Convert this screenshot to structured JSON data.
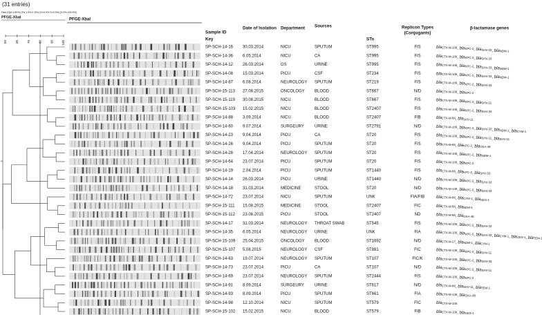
{
  "caption": "(31 entries)",
  "dendrogram": {
    "method": "Dice (Opt:1.50%) (Tol 1.5%-1.5%) (H>0.0% S>0.0%) [0.0%-100.0%]",
    "title": "PFGE-XbaI",
    "scale_ticks": [
      50,
      60,
      70,
      80,
      90,
      100
    ]
  },
  "gel": {
    "title": "PFGE-XbaI"
  },
  "table": {
    "headers": {
      "sample_id": "Sample ID",
      "key": "Key",
      "date": "Date of Isolation",
      "department": "Department",
      "sources": "Sources",
      "sts": "STs",
      "replicon": [
        "Replicon Types",
        "(Conjugants)"
      ],
      "genes": "β-lactamase genes"
    },
    "gene_prefix": "bla",
    "gene_separator": ", ",
    "rows": [
      [
        "SP-SCH-14-16",
        "30.03.2014",
        "NICU",
        "SPUTUM",
        "ST995",
        "FIS",
        [
          "CTX-M-106",
          "KPC-2",
          "SHV-33",
          "NDM-1"
        ]
      ],
      [
        "SP-SCH-14-36",
        "6.05.2014",
        "NICU",
        "CA",
        "ST995",
        "FIS",
        [
          "CTX-M-106",
          "KPC-2",
          "SHV-33"
        ]
      ],
      [
        "SP-SCH-14-12",
        "26.03.2014",
        "GS",
        "URINE",
        "ST995",
        "FIS",
        [
          "CTX-M-106",
          "KPC-2",
          "SHV-33",
          "NDM-1"
        ]
      ],
      [
        "SP-SCH-14-08",
        "15.03.2014",
        "PICU",
        "CSF",
        "ST234",
        "FIS",
        [
          "CTX-M-106",
          "KPC-2",
          "SHV-33",
          "NDM-1"
        ]
      ],
      [
        "SP-SCH-14-87",
        "6.08.2014",
        "NEUROLOGY",
        "SPUTUM",
        "ST219",
        "FIS",
        [
          "CTX-M-106",
          "KPC-2",
          "SHV-33"
        ]
      ],
      [
        "SP-SCH-15-113",
        "27.08.2015",
        "ONCOLOGY",
        "BLOOD",
        "ST667",
        "N/D",
        [
          "CTX-M-106",
          "KPC-2"
        ]
      ],
      [
        "SP-SCH-15-119",
        "30.08.2015",
        "NICU",
        "BLOOD",
        "ST667",
        "FIS",
        [
          "CTX-M-106",
          "KPC-2",
          "SHV-11"
        ]
      ],
      [
        "SP-SCH-15-103",
        "15.02.2015",
        "NICU",
        "BLOOD",
        "ST2407",
        "FIS",
        [
          "CTX-M-106",
          "KPC-2",
          "SHV-33"
        ]
      ],
      [
        "SP-SCH-14-88",
        "3.09.2014",
        "NICU",
        "BLOOD",
        "ST2407",
        "FIB",
        [
          "CTX-M-86",
          "SHV-11"
        ]
      ],
      [
        "SP-SCH-14-60",
        "9.07.2014",
        "SURGEURY",
        "URINE",
        "ST2791",
        "N/D",
        [
          "CTX-M-106",
          "KPC-2",
          "SHV-33",
          "NDM-1",
          "CYM-1"
        ]
      ],
      [
        "SP-SCH-14-23",
        "9.04.2014",
        "PICU",
        "CA",
        "ST20",
        "FIS",
        [
          "CTX-M-106",
          "KPC-2",
          "SHV-11",
          "SHV-11"
        ]
      ],
      [
        "SP-SCH-14-26",
        "9.04.2014",
        "PICU",
        "SPUTUM",
        "ST20",
        "FIS",
        [
          "CTX-M-86",
          "KPC-2",
          "OXA-48"
        ]
      ],
      [
        "SP-SCH-14-28",
        "17.04.2014",
        "NEUROLOGY",
        "SPUTUM",
        "ST20",
        "FIS",
        [
          "CTX-M-106",
          "KPC-2",
          "NDM-1"
        ]
      ],
      [
        "SP-SCH-14-64",
        "23.07.2014",
        "PICU",
        "SPUTUM",
        "ST20",
        "FIS",
        [
          "CTX-M-106",
          "KPC-2"
        ]
      ],
      [
        "SP-SCH-14-19",
        "2.04.2014",
        "PICU",
        "SPUTUM",
        "ST1440",
        "FIS",
        [
          "CTX-M-86",
          "KPC-2",
          "SHV-33"
        ]
      ],
      [
        "SP-SCH-14-14",
        "26.03.2014",
        "PICU",
        "URINE",
        "ST1440",
        "N/D",
        [
          "CTX-M-106",
          "KPC-2",
          "SHV-33"
        ]
      ],
      [
        "SP-SCH-14-18",
        "31.03.2014",
        "MEDICINE",
        "STOOL",
        "ST20",
        "N/D",
        [
          "CTX-M-136",
          "KPC-2",
          "SHV-33"
        ]
      ],
      [
        "SP-SCH-14-72",
        "23.07.2014",
        "NICU",
        "SPUTUM",
        "UNK",
        "FIA/FIB",
        [
          "CTX-M-86",
          "CYM-1",
          "GES-1"
        ]
      ],
      [
        "SP-SCH-15-111",
        "15.08.2015",
        "MEDICINE",
        "STOOL",
        "ST2407",
        "FIC",
        [
          "CTX-M-86",
          "NDM-1"
        ]
      ],
      [
        "SP-SCH-15-112",
        "23.08.2015",
        "PICU",
        "STOOL",
        "ST2407",
        "ND",
        [
          "CTX-M-86",
          "OXA-48"
        ]
      ],
      [
        "SP-SCH-14-17",
        "31.03.2014",
        "NEUROLOGY",
        "THROAT SWAB",
        "ST545",
        "FIS",
        [
          "CTX-M-106",
          "KPC-2",
          "SHV-33"
        ]
      ],
      [
        "SP-SCH-14-35",
        "6.05.2014",
        "NEUROLOGY",
        "URINE",
        "UNK",
        "FIA",
        [
          "CTX-M-106",
          "KPC-2",
          "SHV-33",
          "CYM-1",
          "GES-1",
          "TEM-1"
        ]
      ],
      [
        "SP-SCH-15-109",
        "25.04.2015",
        "ONCOLOGY",
        "BLOOD",
        "ST1692",
        "N/D",
        [
          "CTX-M-27",
          "NDM-1",
          "CYM-1"
        ]
      ],
      [
        "SP-SCH-15-107",
        "5.08.2015",
        "NEUROLOGY",
        "CSF",
        "ST881",
        "FIC",
        [
          "CTX-M-136",
          "KPC-2",
          "SHV-11"
        ]
      ],
      [
        "SP-SCH-14-63",
        "19.07.2014",
        "NEUROLOGY",
        "SPUTUM",
        "ST107",
        "FIC/K",
        [
          "CTX-M-106",
          "KPC-2",
          "SHV-33"
        ]
      ],
      [
        "SP-SCH-14-73",
        "23.07.2014",
        "PICU",
        "CA",
        "ST107",
        "N/D",
        [
          "CTX-M-106",
          "KPC-2",
          "SHV-11"
        ]
      ],
      [
        "SP-SCH-14-69",
        "23.07.2014",
        "NEUROLOGY",
        "SPUTUM",
        "ST2444",
        "FIS",
        [
          "CTX-M-106",
          "KPC-2"
        ]
      ],
      [
        "SP-SCH-14-91",
        "8.09.2014",
        "SURGEURY",
        "URINE",
        "ST617",
        "N/D",
        [
          "CTX-M-86",
          "SHV-11",
          "TEM-1"
        ]
      ],
      [
        "SP-SCH-14-93",
        "8.09.2014",
        "PICU",
        "SPUTUM",
        "ST661",
        "FIA",
        [
          "CTX-M-136",
          "OXA-48"
        ]
      ],
      [
        "SP-SCH-14-98",
        "12.10.2014",
        "NICU",
        "SPUTUM",
        "ST579",
        "FIC",
        [
          "CTX-M-106"
        ]
      ],
      [
        "SP-SCH-15-102",
        "15.02.2015",
        "NICU",
        "BLOOD",
        "ST579",
        "FIB",
        [
          "CTX-M-106",
          "GES-1"
        ]
      ]
    ]
  }
}
